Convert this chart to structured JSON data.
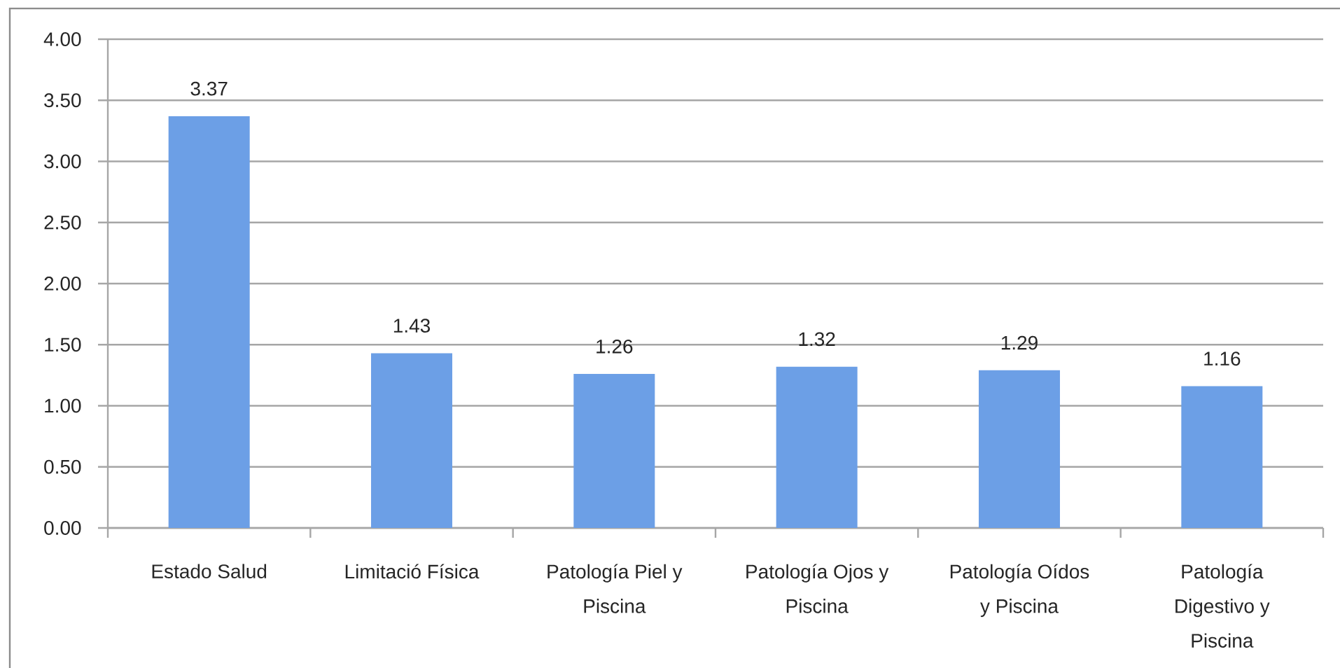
{
  "chart_data": {
    "type": "bar",
    "categories": [
      "Estado Salud",
      "Limitació Física",
      "Patología Piel y Piscina",
      "Patología Ojos y Piscina",
      "Patología Oídos y Piscina",
      "Patología Digestivo y Piscina"
    ],
    "values": [
      3.37,
      1.43,
      1.26,
      1.32,
      1.29,
      1.16
    ],
    "color": "#6c9fe6",
    "ylim": [
      0,
      4
    ],
    "yticks": [
      {
        "value": 0,
        "label": "0.00"
      },
      {
        "value": 0.5,
        "label": "0.50"
      },
      {
        "value": 1,
        "label": "1.00"
      },
      {
        "value": 1.5,
        "label": "1.50"
      },
      {
        "value": 2,
        "label": "2.00"
      },
      {
        "value": 2.5,
        "label": "2.50"
      },
      {
        "value": 3,
        "label": "3.00"
      },
      {
        "value": 3.5,
        "label": "3.50"
      },
      {
        "value": 4,
        "label": "4.00"
      }
    ],
    "grid": "y",
    "data_labels": true
  }
}
